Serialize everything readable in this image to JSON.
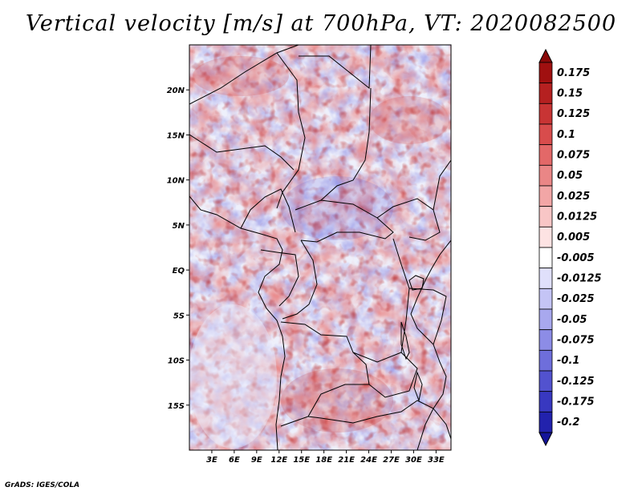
{
  "title": "Vertical velocity [m/s] at 700hPa, VT: 2020082500",
  "credit": "GrADS: IGES/COLA",
  "chart_data": {
    "type": "heatmap",
    "variable": "Vertical velocity",
    "units": "m/s",
    "level": "700hPa",
    "valid_time": "2020082500",
    "lon_range": [
      0,
      35
    ],
    "lat_range": [
      -20,
      25
    ],
    "lon_ticks": [
      {
        "value": 3,
        "label": "3E"
      },
      {
        "value": 6,
        "label": "6E"
      },
      {
        "value": 9,
        "label": "9E"
      },
      {
        "value": 12,
        "label": "12E"
      },
      {
        "value": 15,
        "label": "15E"
      },
      {
        "value": 18,
        "label": "18E"
      },
      {
        "value": 21,
        "label": "21E"
      },
      {
        "value": 24,
        "label": "24E"
      },
      {
        "value": 27,
        "label": "27E"
      },
      {
        "value": 30,
        "label": "30E"
      },
      {
        "value": 33,
        "label": "33E"
      }
    ],
    "lat_ticks": [
      {
        "value": 20,
        "label": "20N"
      },
      {
        "value": 15,
        "label": "15N"
      },
      {
        "value": 10,
        "label": "10N"
      },
      {
        "value": 5,
        "label": "5N"
      },
      {
        "value": 0,
        "label": "EQ"
      },
      {
        "value": -5,
        "label": "5S"
      },
      {
        "value": -10,
        "label": "10S"
      },
      {
        "value": -15,
        "label": "15S"
      }
    ],
    "colorbar": {
      "levels": [
        {
          "label": "0.175",
          "color": "#a01010"
        },
        {
          "label": "0.15",
          "color": "#b52020"
        },
        {
          "label": "0.125",
          "color": "#c83434"
        },
        {
          "label": "0.1",
          "color": "#d84c4c"
        },
        {
          "label": "0.075",
          "color": "#e36868"
        },
        {
          "label": "0.05",
          "color": "#ea8686"
        },
        {
          "label": "0.025",
          "color": "#f2a6a6"
        },
        {
          "label": "0.0125",
          "color": "#f8c6c6"
        },
        {
          "label": "0.005",
          "color": "#fde3e3"
        },
        {
          "label": "-0.005",
          "color": "#ffffff"
        },
        {
          "label": "-0.0125",
          "color": "#e0e0fb"
        },
        {
          "label": "-0.025",
          "color": "#c4c4f5"
        },
        {
          "label": "-0.05",
          "color": "#a8a8ee"
        },
        {
          "label": "-0.075",
          "color": "#8c8ce6"
        },
        {
          "label": "-0.1",
          "color": "#6e6edb"
        },
        {
          "label": "-0.125",
          "color": "#5252cf"
        },
        {
          "label": "-0.175",
          "color": "#3838c0"
        },
        {
          "label": "-0.2",
          "color": "#2222ad"
        }
      ],
      "top_color": "#8a0a0a",
      "bottom_color": "#14149a"
    }
  }
}
